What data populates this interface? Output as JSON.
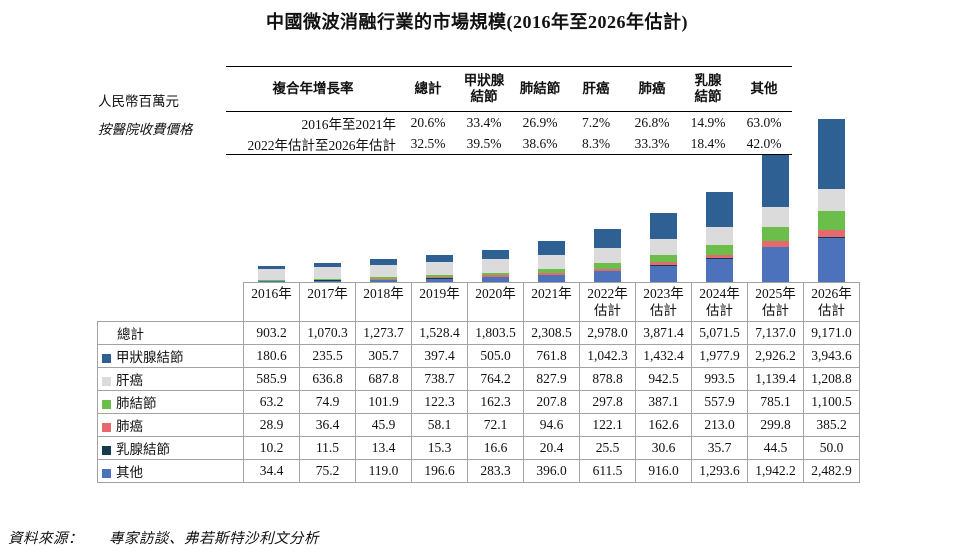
{
  "title": "中國微波消融行業的市場規模(2016年至2026年估計)",
  "side_labels": {
    "unit": "人民幣百萬元",
    "pricing": "按醫院收費價格"
  },
  "cagr_table": {
    "headers": [
      "複合年增長率",
      "總計",
      "甲狀腺\n結節",
      "肺結節",
      "肝癌",
      "肺癌",
      "乳腺\n結節",
      "其他"
    ],
    "rows": [
      {
        "label": "2016年至2021年",
        "values": [
          "20.6%",
          "33.4%",
          "26.9%",
          "7.2%",
          "26.8%",
          "14.9%",
          "63.0%"
        ]
      },
      {
        "label": "2022年估計至2026年估計",
        "values": [
          "32.5%",
          "39.5%",
          "38.6%",
          "8.3%",
          "33.3%",
          "18.4%",
          "42.0%"
        ]
      }
    ]
  },
  "chart_data": {
    "type": "bar",
    "stacked": true,
    "title": "中國微波消融行業的市場規模(2016年至2026年估計)",
    "unit": "人民幣百萬元",
    "pricing_basis": "按醫院收費價格",
    "categories": [
      "2016年",
      "2017年",
      "2018年",
      "2019年",
      "2020年",
      "2021年",
      "2022年估計",
      "2023年估計",
      "2024年估計",
      "2025年估計",
      "2026年估計"
    ],
    "ylim": [
      0,
      9171
    ],
    "grid": false,
    "legend_position": "table-row-labels",
    "totals": [
      903.2,
      1070.3,
      1273.7,
      1528.4,
      1803.5,
      2308.5,
      2978.0,
      3871.4,
      5071.5,
      7137.0,
      9171.0
    ],
    "stack_order_note": "series listed bottom-to-top",
    "series": [
      {
        "name": "其他",
        "color": "#4C72BB",
        "values": [
          34.4,
          75.2,
          119.0,
          196.6,
          283.3,
          396.0,
          611.5,
          916.0,
          1293.6,
          1942.2,
          2482.9
        ]
      },
      {
        "name": "乳腺結節",
        "color": "#123B4D",
        "values": [
          10.2,
          11.5,
          13.4,
          15.3,
          16.6,
          20.4,
          25.5,
          30.6,
          35.7,
          44.5,
          50.0
        ]
      },
      {
        "name": "肺癌",
        "color": "#E5696F",
        "values": [
          28.9,
          36.4,
          45.9,
          58.1,
          72.1,
          94.6,
          122.1,
          162.6,
          213.0,
          299.8,
          385.2
        ]
      },
      {
        "name": "肺結節",
        "color": "#6CBE4B",
        "values": [
          63.2,
          74.9,
          101.9,
          122.3,
          162.3,
          207.8,
          297.8,
          387.1,
          557.9,
          785.1,
          1100.5
        ]
      },
      {
        "name": "肝癌",
        "color": "#DBDBDB",
        "values": [
          585.9,
          636.8,
          687.8,
          738.7,
          764.2,
          827.9,
          878.8,
          942.5,
          993.5,
          1139.4,
          1208.8
        ]
      },
      {
        "name": "甲狀腺結節",
        "color": "#2E6094",
        "values": [
          180.6,
          235.5,
          305.7,
          397.4,
          505.0,
          761.8,
          1042.3,
          1432.4,
          1977.9,
          2926.2,
          3943.6
        ]
      }
    ]
  },
  "data_table": {
    "col_headers": [
      "2016年",
      "2017年",
      "2018年",
      "2019年",
      "2020年",
      "2021年",
      "2022年\n估計",
      "2023年\n估計",
      "2024年\n估計",
      "2025年\n估計",
      "2026年\n估計"
    ],
    "rows": [
      {
        "label": "總計",
        "swatch": null,
        "values": [
          "903.2",
          "1,070.3",
          "1,273.7",
          "1,528.4",
          "1,803.5",
          "2,308.5",
          "2,978.0",
          "3,871.4",
          "5,071.5",
          "7,137.0",
          "9,171.0"
        ]
      },
      {
        "label": "甲狀腺結節",
        "swatch": "#2E6094",
        "values": [
          "180.6",
          "235.5",
          "305.7",
          "397.4",
          "505.0",
          "761.8",
          "1,042.3",
          "1,432.4",
          "1,977.9",
          "2,926.2",
          "3,943.6"
        ]
      },
      {
        "label": "肝癌",
        "swatch": "#DBDBDB",
        "values": [
          "585.9",
          "636.8",
          "687.8",
          "738.7",
          "764.2",
          "827.9",
          "878.8",
          "942.5",
          "993.5",
          "1,139.4",
          "1,208.8"
        ]
      },
      {
        "label": "肺結節",
        "swatch": "#6CBE4B",
        "values": [
          "63.2",
          "74.9",
          "101.9",
          "122.3",
          "162.3",
          "207.8",
          "297.8",
          "387.1",
          "557.9",
          "785.1",
          "1,100.5"
        ]
      },
      {
        "label": "肺癌",
        "swatch": "#E5696F",
        "values": [
          "28.9",
          "36.4",
          "45.9",
          "58.1",
          "72.1",
          "94.6",
          "122.1",
          "162.6",
          "213.0",
          "299.8",
          "385.2"
        ]
      },
      {
        "label": "乳腺結節",
        "swatch": "#123B4D",
        "values": [
          "10.2",
          "11.5",
          "13.4",
          "15.3",
          "16.6",
          "20.4",
          "25.5",
          "30.6",
          "35.7",
          "44.5",
          "50.0"
        ]
      },
      {
        "label": "其他",
        "swatch": "#4C72BB",
        "values": [
          "34.4",
          "75.2",
          "119.0",
          "196.6",
          "283.3",
          "396.0",
          "611.5",
          "916.0",
          "1,293.6",
          "1,942.2",
          "2,482.9"
        ]
      }
    ]
  },
  "footer": {
    "source_label": "資料來源：",
    "source_text": "專家訪談、弗若斯特沙利文分析"
  }
}
